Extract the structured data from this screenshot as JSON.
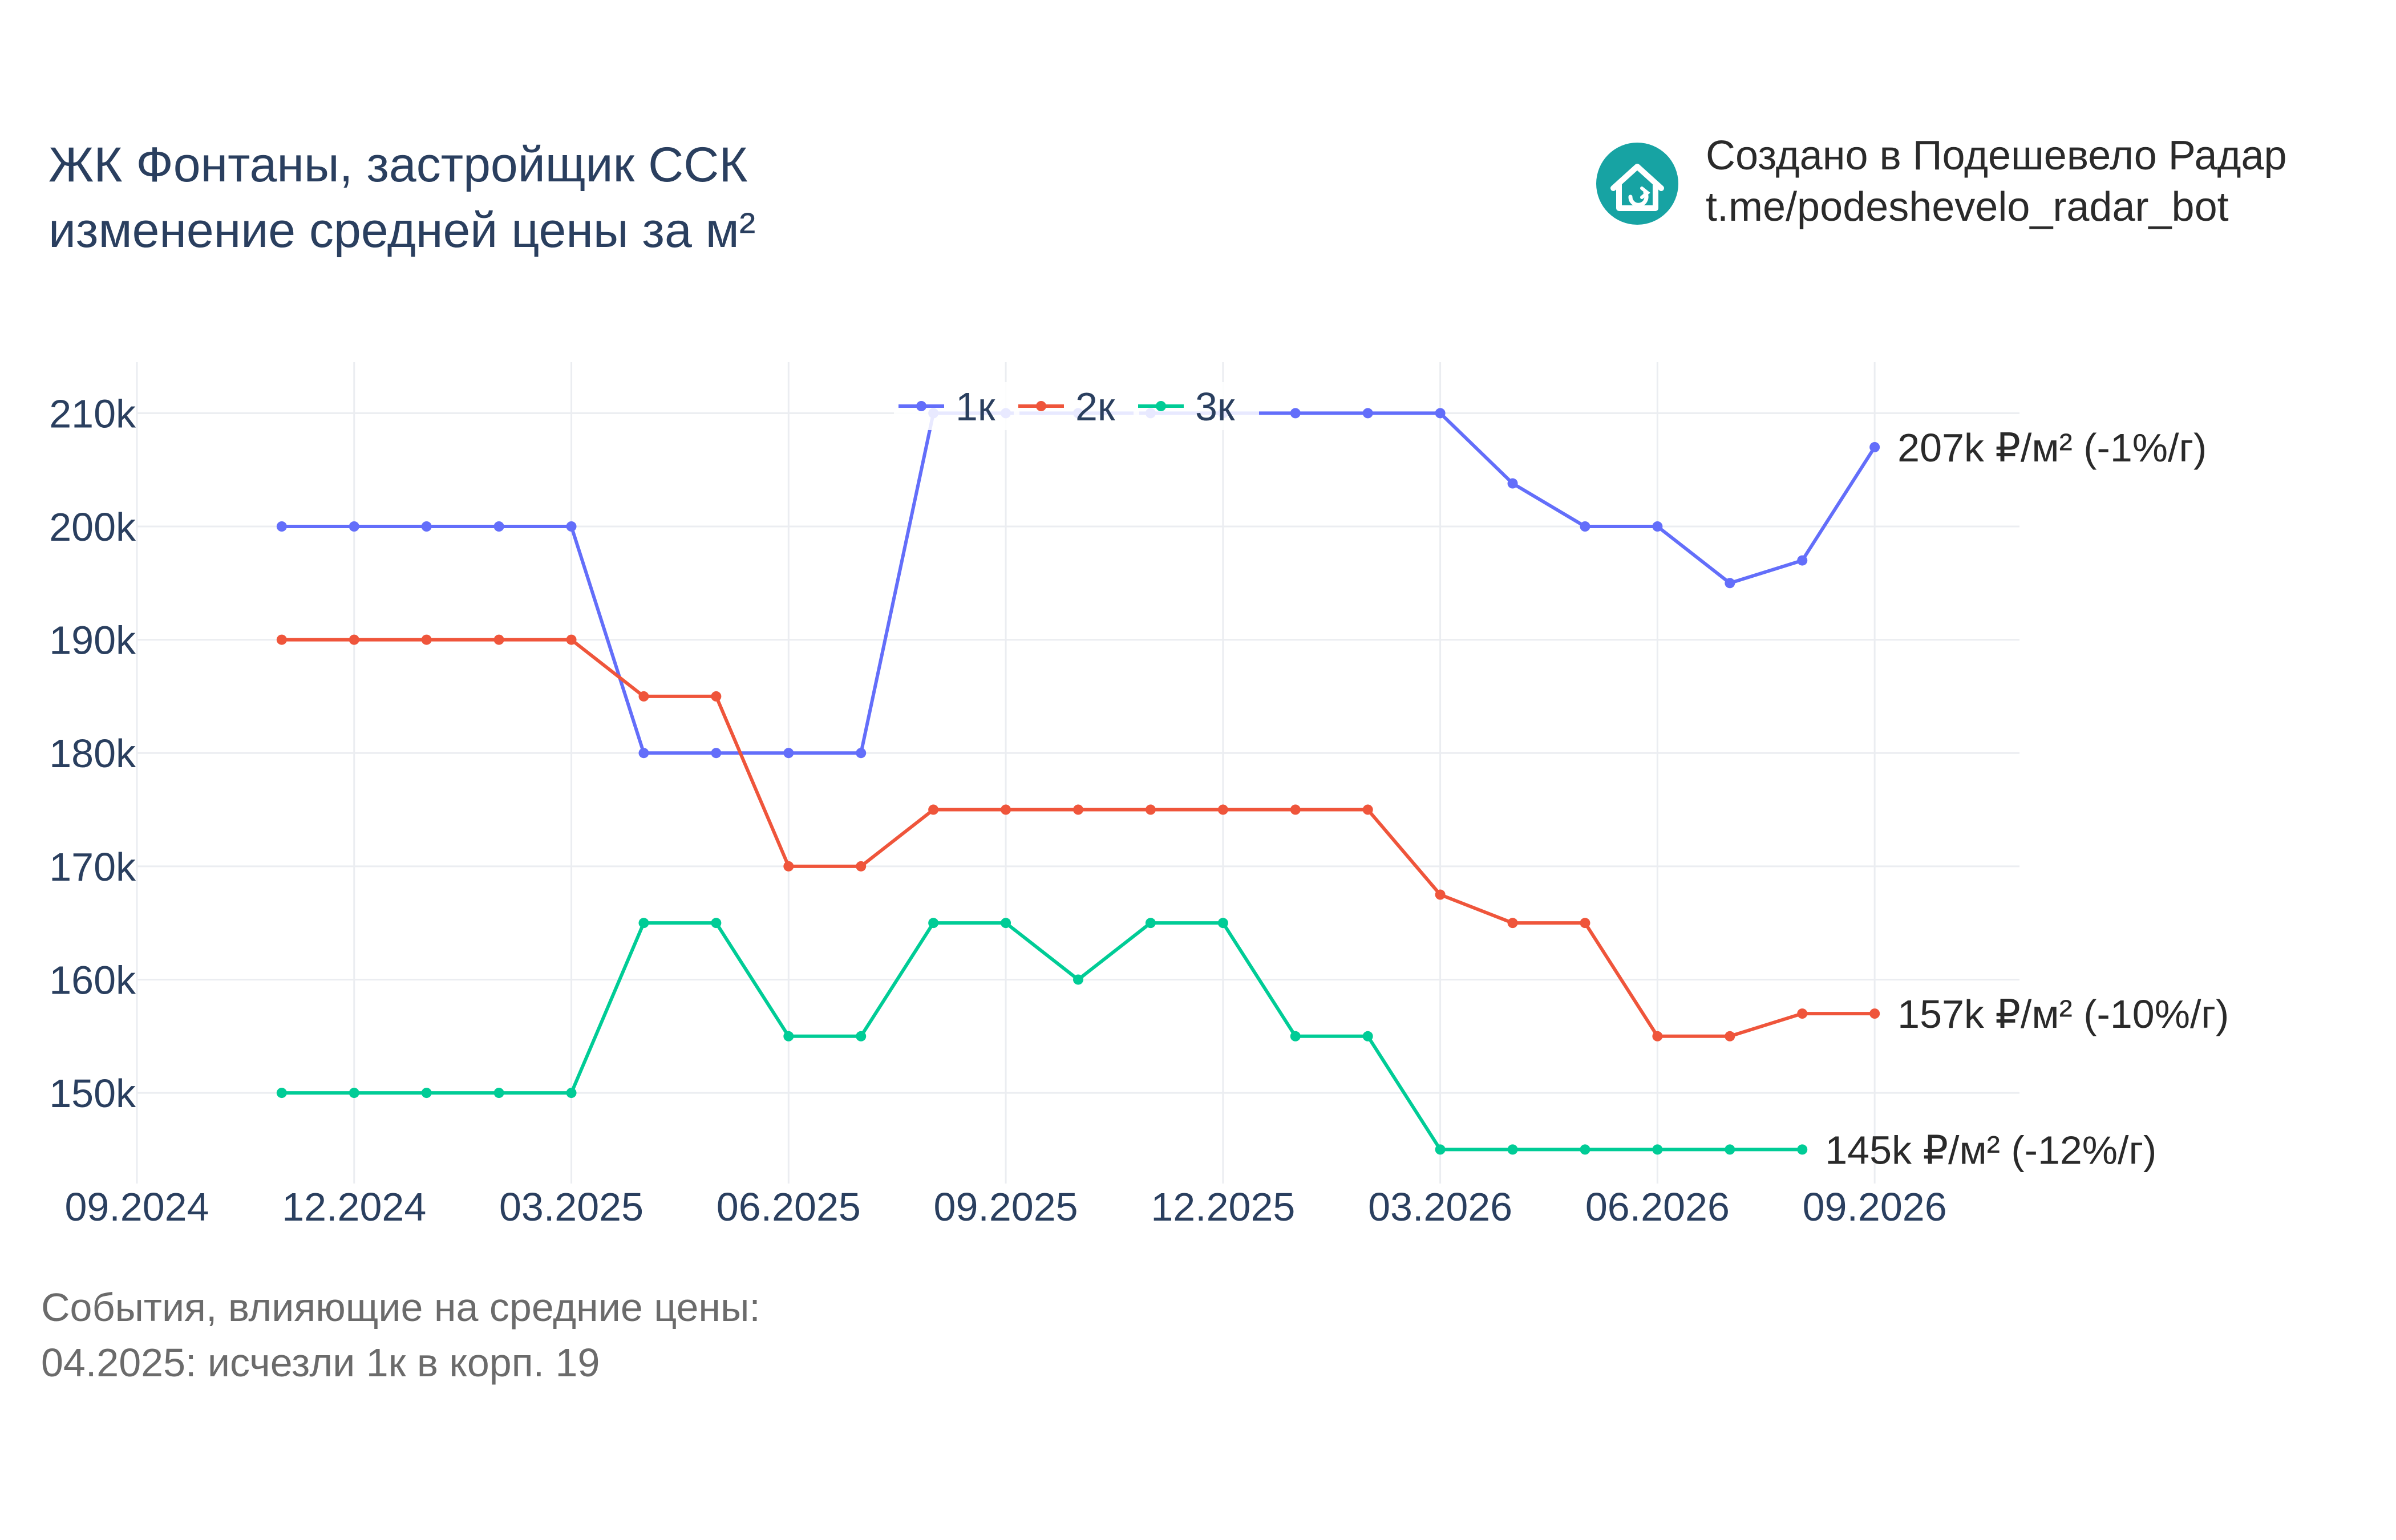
{
  "header": {
    "title_line1": "ЖК Фонтаны, застройщик ССК",
    "title_line2": "изменение средней цены за м²"
  },
  "brand": {
    "line1": "Создано в Подешевело Радар",
    "line2": "t.me/podeshevelo_radar_bot",
    "logo_icon": "house-refresh-icon",
    "logo_color": "#17a3a3"
  },
  "notes": {
    "line1": "События, влияющие на средние цены:",
    "line2": "04.2025: исчезли 1к в корп. 19"
  },
  "chart_data": {
    "type": "line",
    "x": [
      "2024-11",
      "2024-12",
      "2025-01",
      "2025-02",
      "2025-03",
      "2025-04",
      "2025-05",
      "2025-06",
      "2025-07",
      "2025-08",
      "2025-09",
      "2025-10",
      "2025-11",
      "2025-12",
      "2026-01",
      "2026-02",
      "2026-03",
      "2026-04",
      "2026-05",
      "2026-06",
      "2026-07",
      "2026-08",
      "2026-09"
    ],
    "x_ticks": [
      "2024-09",
      "2024-12",
      "2025-03",
      "2025-06",
      "2025-09",
      "2025-12",
      "2026-03",
      "2026-06",
      "2026-09"
    ],
    "x_tick_labels": [
      "09.2024",
      "12.2024",
      "03.2025",
      "06.2025",
      "09.2025",
      "12.2025",
      "03.2026",
      "06.2026",
      "09.2026"
    ],
    "xlim": [
      "2024-09",
      "2026-11"
    ],
    "ylim": [
      142000,
      214500
    ],
    "y_ticks": [
      150000,
      160000,
      170000,
      180000,
      190000,
      200000,
      210000
    ],
    "y_tick_labels": [
      "150k",
      "160k",
      "170k",
      "180k",
      "190k",
      "200k",
      "210k"
    ],
    "grid": true,
    "legend_position": "top-center",
    "series": [
      {
        "name": "1к",
        "color": "#636efa",
        "values": [
          200000,
          200000,
          200000,
          200000,
          200000,
          180000,
          180000,
          180000,
          180000,
          210000,
          210000,
          210000,
          210000,
          210000,
          210000,
          210000,
          210000,
          203800,
          200000,
          200000,
          195000,
          197000,
          207000
        ],
        "end_label": "207k ₽/м² (-1%/г)"
      },
      {
        "name": "2к",
        "color": "#ef553b",
        "values": [
          190000,
          190000,
          190000,
          190000,
          190000,
          185000,
          185000,
          170000,
          170000,
          175000,
          175000,
          175000,
          175000,
          175000,
          175000,
          175000,
          167500,
          165000,
          165000,
          155000,
          155000,
          157000,
          157000
        ],
        "end_label": "157k ₽/м² (-10%/г)"
      },
      {
        "name": "3к",
        "color": "#00cc96",
        "values": [
          150000,
          150000,
          150000,
          150000,
          150000,
          165000,
          165000,
          155000,
          155000,
          165000,
          165000,
          160000,
          165000,
          165000,
          155000,
          155000,
          145000,
          145000,
          145000,
          145000,
          145000,
          145000,
          null
        ],
        "end_label": "145k ₽/м² (-12%/г)"
      }
    ]
  }
}
